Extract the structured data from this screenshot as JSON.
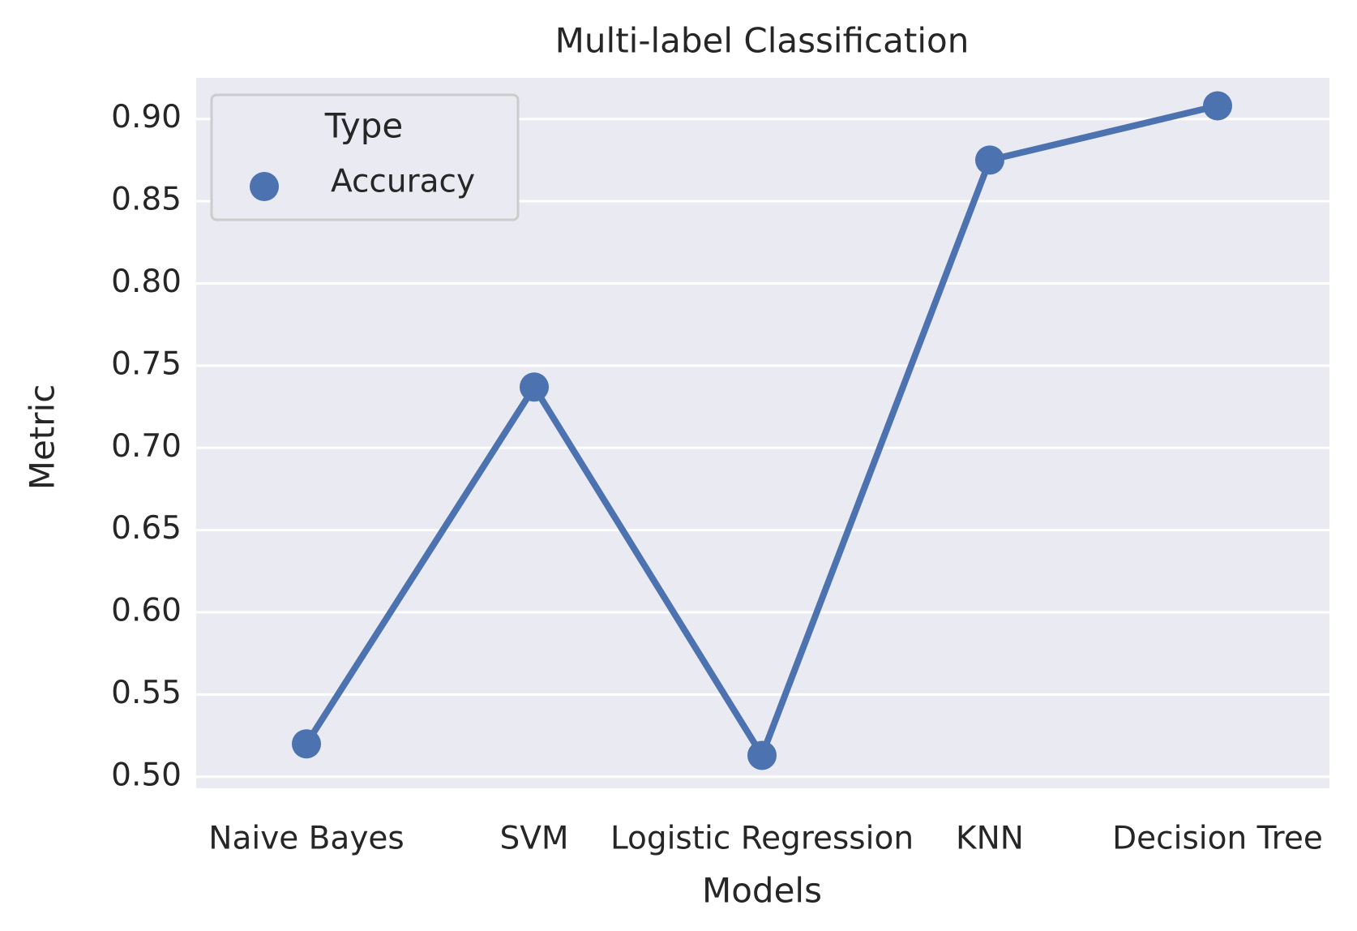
{
  "chart_data": {
    "type": "line",
    "title": "Multi-label Classification",
    "xlabel": "Models",
    "ylabel": "Metric",
    "categories": [
      "Naive Bayes",
      "SVM",
      "Logistic Regression",
      "KNN",
      "Decision Tree"
    ],
    "series": [
      {
        "name": "Accuracy",
        "values": [
          0.52,
          0.737,
          0.513,
          0.875,
          0.908
        ]
      }
    ],
    "ylim": [
      0.493,
      0.925
    ],
    "yticks": [
      "0.50",
      "0.55",
      "0.60",
      "0.65",
      "0.70",
      "0.75",
      "0.80",
      "0.85",
      "0.90"
    ],
    "grid": true,
    "legend": {
      "title": "Type",
      "position": "top-left"
    },
    "colors": {
      "series": "#4c72b0",
      "plot_background": "#eaeaf2",
      "grid": "#ffffff",
      "text": "#262626"
    }
  }
}
